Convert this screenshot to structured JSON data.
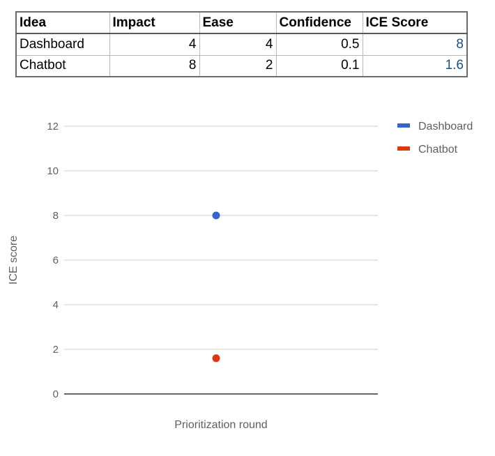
{
  "table": {
    "headers": [
      "Idea",
      "Impact",
      "Ease",
      "Confidence",
      "ICE Score"
    ],
    "rows": [
      [
        "Dashboard",
        "4",
        "4",
        "0.5",
        "8"
      ],
      [
        "Chatbot",
        "8",
        "2",
        "0.1",
        "1.6"
      ]
    ]
  },
  "chart_data": {
    "type": "scatter",
    "title": "",
    "xlabel": "Prioritization round",
    "ylabel": "ICE score",
    "ylim": [
      0,
      12
    ],
    "yticks": [
      "0",
      "2",
      "4",
      "6",
      "8",
      "10",
      "12"
    ],
    "grid": true,
    "legend_position": "right",
    "series": [
      {
        "name": "Dashboard",
        "color": "#3366cc",
        "values": [
          8
        ]
      },
      {
        "name": "Chatbot",
        "color": "#dc3912",
        "values": [
          1.6
        ]
      }
    ]
  }
}
